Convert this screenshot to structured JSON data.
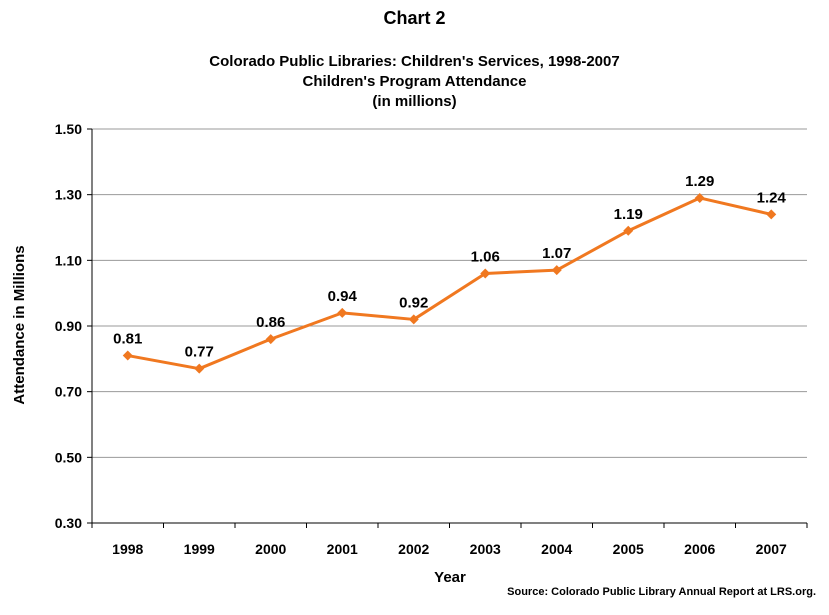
{
  "chart_data": {
    "type": "line",
    "title": "Chart 2",
    "subtitle_lines": [
      "Colorado Public Libraries: Children's Services, 1998-2007",
      "Children's Program Attendance",
      "(in millions)"
    ],
    "xlabel": "Year",
    "ylabel": "Attendance in Millions",
    "categories": [
      "1998",
      "1999",
      "2000",
      "2001",
      "2002",
      "2003",
      "2004",
      "2005",
      "2006",
      "2007"
    ],
    "series": [
      {
        "values": [
          0.81,
          0.77,
          0.86,
          0.94,
          0.92,
          1.06,
          1.07,
          1.19,
          1.29,
          1.24
        ],
        "data_labels": [
          "0.81",
          "0.77",
          "0.86",
          "0.94",
          "0.92",
          "1.06",
          "1.07",
          "1.19",
          "1.29",
          "1.24"
        ],
        "color": "#F07820",
        "marker": "diamond"
      }
    ],
    "ylim": [
      0.3,
      1.5
    ],
    "y_ticks": [
      "0.30",
      "0.50",
      "0.70",
      "0.90",
      "1.10",
      "1.30",
      "1.50"
    ],
    "grid": true,
    "legend": "none",
    "source": "Source: Colorado Public Library Annual Report at LRS.org."
  }
}
